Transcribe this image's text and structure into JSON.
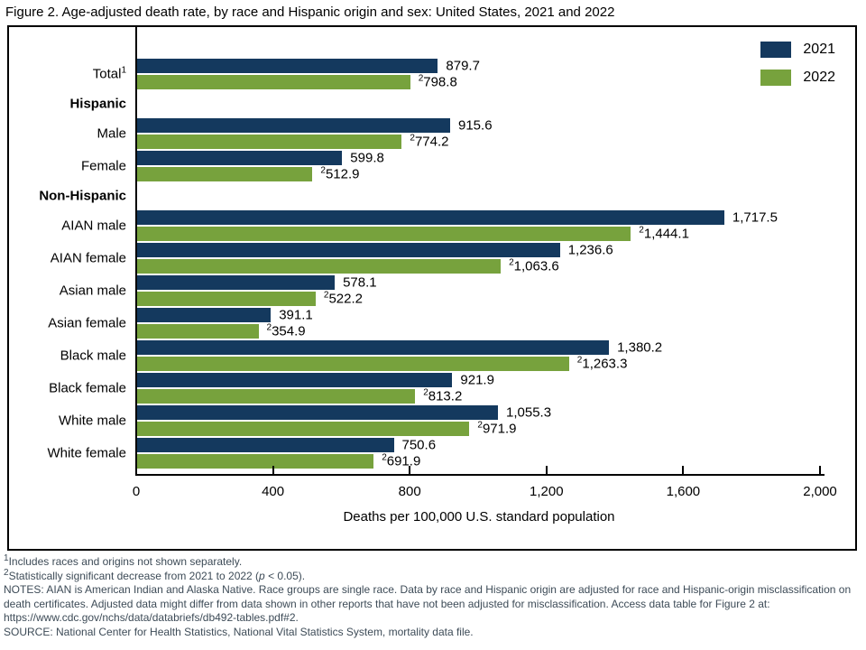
{
  "title": "Figure 2. Age-adjusted death rate, by race and Hispanic origin and sex: United States, 2021 and 2022",
  "colors": {
    "bar_2021": "#14395e",
    "bar_2022": "#77a23d",
    "axis": "#000000",
    "footnote_text": "#3d4b57"
  },
  "legend": {
    "items": [
      {
        "label": "2021",
        "color": "#14395e"
      },
      {
        "label": "2022",
        "color": "#77a23d"
      }
    ]
  },
  "chart_data": {
    "type": "bar",
    "orientation": "horizontal",
    "title": "Figure 2. Age-adjusted death rate, by race and Hispanic origin and sex: United States, 2021 and 2022",
    "xlabel": "Deaths per 100,000 U.S. standard population",
    "xlim": [
      0,
      2000
    ],
    "grid": false,
    "legend_position": "top-right",
    "series_names": [
      "2021",
      "2022"
    ],
    "xticks": [
      {
        "value": 0,
        "label": "0"
      },
      {
        "value": 400,
        "label": "400"
      },
      {
        "value": 800,
        "label": "800"
      },
      {
        "value": 1200,
        "label": "1,200"
      },
      {
        "value": 1600,
        "label": "1,600"
      },
      {
        "value": 2000,
        "label": "2,000"
      }
    ],
    "rows": [
      {
        "kind": "pair",
        "label": "Total",
        "label_sup": "1",
        "v2021": 879.7,
        "d2021": "879.7",
        "v2022": 798.8,
        "d2022": "798.8",
        "sig_2022": true
      },
      {
        "kind": "header",
        "label": "Hispanic"
      },
      {
        "kind": "pair",
        "label": "Male",
        "v2021": 915.6,
        "d2021": "915.6",
        "v2022": 774.2,
        "d2022": "774.2",
        "sig_2022": true
      },
      {
        "kind": "pair",
        "label": "Female",
        "v2021": 599.8,
        "d2021": "599.8",
        "v2022": 512.9,
        "d2022": "512.9",
        "sig_2022": true
      },
      {
        "kind": "header",
        "label": "Non-Hispanic"
      },
      {
        "kind": "pair",
        "label": "AIAN male",
        "v2021": 1717.5,
        "d2021": "1,717.5",
        "v2022": 1444.1,
        "d2022": "1,444.1",
        "sig_2022": true
      },
      {
        "kind": "pair",
        "label": "AIAN female",
        "v2021": 1236.6,
        "d2021": "1,236.6",
        "v2022": 1063.6,
        "d2022": "1,063.6",
        "sig_2022": true
      },
      {
        "kind": "pair",
        "label": "Asian male",
        "v2021": 578.1,
        "d2021": "578.1",
        "v2022": 522.2,
        "d2022": "522.2",
        "sig_2022": true
      },
      {
        "kind": "pair",
        "label": "Asian female",
        "v2021": 391.1,
        "d2021": "391.1",
        "v2022": 354.9,
        "d2022": "354.9",
        "sig_2022": true
      },
      {
        "kind": "pair",
        "label": "Black male",
        "v2021": 1380.2,
        "d2021": "1,380.2",
        "v2022": 1263.3,
        "d2022": "1,263.3",
        "sig_2022": true
      },
      {
        "kind": "pair",
        "label": "Black female",
        "v2021": 921.9,
        "d2021": "921.9",
        "v2022": 813.2,
        "d2022": "813.2",
        "sig_2022": true
      },
      {
        "kind": "pair",
        "label": "White male",
        "v2021": 1055.3,
        "d2021": "1,055.3",
        "v2022": 971.9,
        "d2022": "971.9",
        "sig_2022": true
      },
      {
        "kind": "pair",
        "label": "White female",
        "v2021": 750.6,
        "d2021": "750.6",
        "v2022": 691.9,
        "d2022": "691.9",
        "sig_2022": true
      }
    ]
  },
  "footnotes": {
    "fn1_sup": "1",
    "fn1": "Includes races and origins not shown separately.",
    "fn2_sup": "2",
    "fn2_pre": "Statistically significant decrease from 2021 to 2022 (",
    "fn2_p": "p",
    "fn2_post": " < 0.05).",
    "notes": "NOTES: AIAN is American Indian and Alaska Native. Race groups are single race. Data by race and Hispanic origin are adjusted for race and Hispanic-origin misclassification on death certificates. Adjusted data might differ from data shown in other reports that have not been adjusted for misclassification. Access data table for Figure 2 at: https://www.cdc.gov/nchs/data/databriefs/db492-tables.pdf#2.",
    "source": "SOURCE: National Center for Health Statistics, National Vital Statistics System, mortality data file."
  }
}
